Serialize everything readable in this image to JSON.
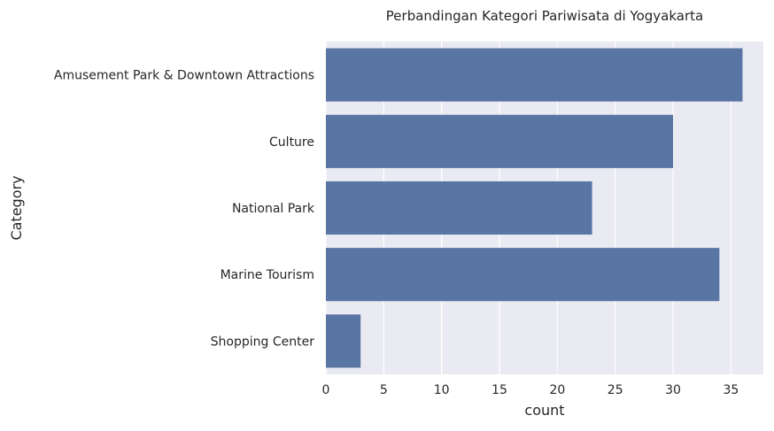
{
  "chart_data": {
    "type": "bar",
    "orientation": "horizontal",
    "title": "Perbandingan Kategori Pariwisata di Yogyakarta",
    "xlabel": "count",
    "ylabel": "Category",
    "categories": [
      "Amusement Park & Downtown Attractions",
      "Culture",
      "National Park",
      "Marine Tourism",
      "Shopping Center"
    ],
    "values": [
      36,
      30,
      23,
      34,
      3
    ],
    "xlim": [
      0,
      37.8
    ],
    "xticks": [
      0,
      5,
      10,
      15,
      20,
      25,
      30,
      35
    ],
    "grid": true,
    "legend": "none",
    "colors": {
      "bar": "#5975a4",
      "plot_background": "#eaeaf2",
      "grid": "#ffffff",
      "text": "#262626"
    }
  }
}
